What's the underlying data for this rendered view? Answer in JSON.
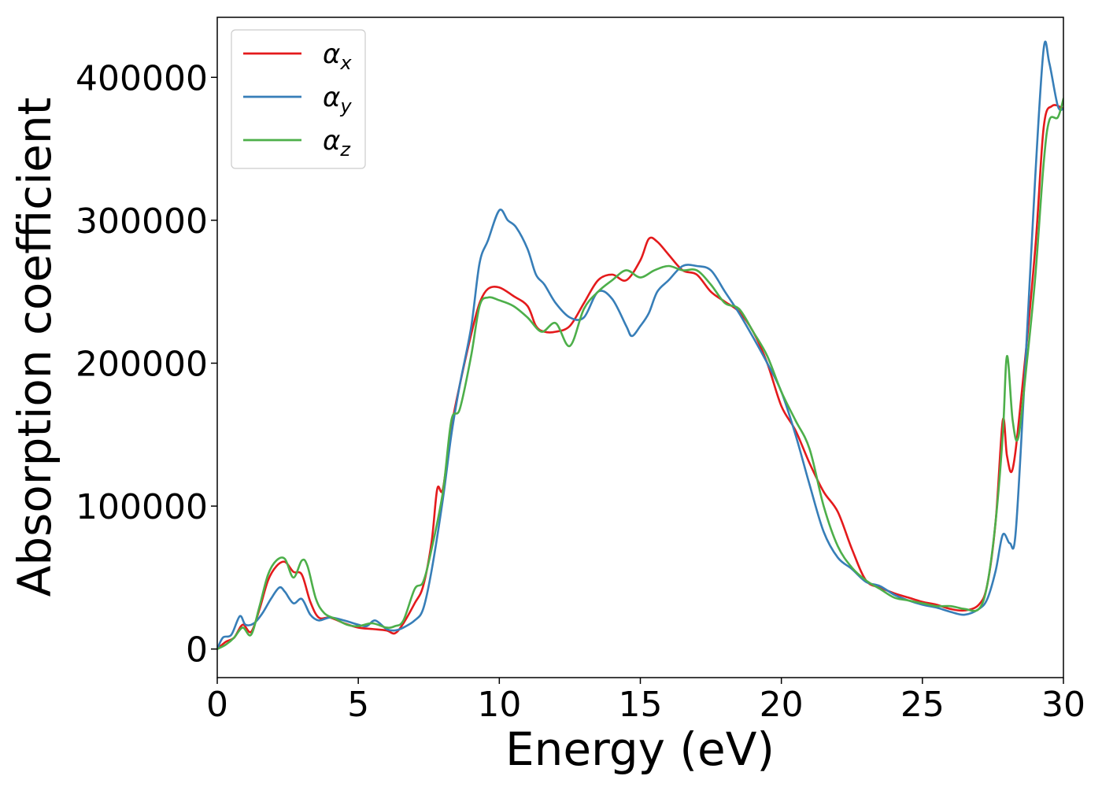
{
  "chart_data": {
    "type": "line",
    "title": "",
    "xlabel": "Energy (eV)",
    "ylabel": "Absorption coefficient",
    "xlim": [
      0,
      30
    ],
    "ylim": [
      -20000,
      442000
    ],
    "xticks": [
      0,
      5,
      10,
      15,
      20,
      25,
      30
    ],
    "xtick_labels": [
      "0",
      "5",
      "10",
      "15",
      "20",
      "25",
      "30"
    ],
    "yticks": [
      0,
      100000,
      200000,
      300000,
      400000
    ],
    "ytick_labels": [
      "0",
      "100000",
      "200000",
      "300000",
      "400000"
    ],
    "grid": false,
    "legend_position": "top-left",
    "series": [
      {
        "name": "αx",
        "symbol": "α",
        "subscript": "x",
        "color": "#e41a1c",
        "x": [
          0,
          0.3,
          0.6,
          0.9,
          1.2,
          1.5,
          1.8,
          2.1,
          2.4,
          2.7,
          3.0,
          3.3,
          3.6,
          4.0,
          4.5,
          5.0,
          5.5,
          6.0,
          6.3,
          6.6,
          7.0,
          7.3,
          7.6,
          7.8,
          8.0,
          8.3,
          8.6,
          9.0,
          9.3,
          9.6,
          10.0,
          10.5,
          11.0,
          11.3,
          11.6,
          12.0,
          12.5,
          13.0,
          13.5,
          14.0,
          14.5,
          15.0,
          15.3,
          15.6,
          16.0,
          16.5,
          17.0,
          17.5,
          18.0,
          18.5,
          19.0,
          19.5,
          20.0,
          20.5,
          21.0,
          21.5,
          22.0,
          22.5,
          23.0,
          23.5,
          24.0,
          24.5,
          25.0,
          25.5,
          26.0,
          26.5,
          27.0,
          27.3,
          27.6,
          27.85,
          28.0,
          28.2,
          28.5,
          29.0,
          29.3,
          29.6,
          30.0
        ],
        "y": [
          0,
          5000,
          8000,
          17000,
          12000,
          28000,
          48000,
          58000,
          61000,
          54000,
          52000,
          33000,
          22000,
          22000,
          18000,
          15000,
          14000,
          13000,
          11000,
          18000,
          32000,
          44000,
          75000,
          112000,
          112000,
          155000,
          185000,
          220000,
          242000,
          252000,
          253000,
          247000,
          240000,
          226000,
          222000,
          222000,
          226000,
          242000,
          258000,
          262000,
          258000,
          272000,
          287000,
          285000,
          276000,
          265000,
          262000,
          250000,
          243000,
          236000,
          222000,
          200000,
          170000,
          153000,
          130000,
          110000,
          96000,
          70000,
          48000,
          43000,
          39000,
          36000,
          33000,
          31000,
          28000,
          27000,
          31000,
          45000,
          90000,
          160000,
          135000,
          126000,
          175000,
          280000,
          365000,
          380000,
          378000
        ]
      },
      {
        "name": "αy",
        "symbol": "α",
        "subscript": "y",
        "color": "#377eb8",
        "x": [
          0,
          0.2,
          0.5,
          0.8,
          1.0,
          1.3,
          1.6,
          1.9,
          2.2,
          2.4,
          2.7,
          3.0,
          3.3,
          3.6,
          4.0,
          4.5,
          5.0,
          5.3,
          5.6,
          6.0,
          6.3,
          6.6,
          7.0,
          7.3,
          7.6,
          8.0,
          8.3,
          8.6,
          9.0,
          9.3,
          9.6,
          10.0,
          10.3,
          10.6,
          11.0,
          11.3,
          11.6,
          12.0,
          12.5,
          13.0,
          13.5,
          14.0,
          14.5,
          14.7,
          15.0,
          15.3,
          15.6,
          16.0,
          16.5,
          17.0,
          17.5,
          18.0,
          18.5,
          19.0,
          19.5,
          20.0,
          20.5,
          21.0,
          21.5,
          22.0,
          22.5,
          23.0,
          23.5,
          24.0,
          24.5,
          25.0,
          25.5,
          26.0,
          26.5,
          27.0,
          27.3,
          27.6,
          27.85,
          28.1,
          28.3,
          28.6,
          29.0,
          29.3,
          29.5,
          29.8,
          30.0
        ],
        "y": [
          0,
          8000,
          10000,
          23000,
          17000,
          18000,
          25000,
          35000,
          43000,
          40000,
          32000,
          35000,
          24000,
          20000,
          22000,
          20000,
          17000,
          16000,
          20000,
          14000,
          13000,
          15000,
          20000,
          28000,
          55000,
          105000,
          150000,
          185000,
          225000,
          270000,
          286000,
          307000,
          300000,
          295000,
          280000,
          262000,
          255000,
          242000,
          232000,
          232000,
          250000,
          245000,
          226000,
          219000,
          226000,
          235000,
          250000,
          258000,
          268000,
          268000,
          265000,
          250000,
          235000,
          218000,
          200000,
          180000,
          150000,
          115000,
          82000,
          64000,
          56000,
          47000,
          44000,
          38000,
          34000,
          31000,
          29000,
          26000,
          24000,
          28000,
          35000,
          55000,
          80000,
          74000,
          80000,
          180000,
          330000,
          420000,
          410000,
          380000,
          378000
        ]
      },
      {
        "name": "αz",
        "symbol": "α",
        "subscript": "z",
        "color": "#4daf4a",
        "x": [
          0,
          0.3,
          0.6,
          0.9,
          1.2,
          1.5,
          1.8,
          2.1,
          2.4,
          2.7,
          3.0,
          3.2,
          3.5,
          3.8,
          4.2,
          4.6,
          5.0,
          5.5,
          6.0,
          6.3,
          6.6,
          7.0,
          7.3,
          7.6,
          8.0,
          8.3,
          8.6,
          9.0,
          9.3,
          9.6,
          10.0,
          10.5,
          11.0,
          11.5,
          12.0,
          12.5,
          13.0,
          13.5,
          14.0,
          14.5,
          15.0,
          15.5,
          16.0,
          16.5,
          17.0,
          17.5,
          18.0,
          18.5,
          19.0,
          19.5,
          20.0,
          20.5,
          21.0,
          21.5,
          22.0,
          22.5,
          23.0,
          23.5,
          24.0,
          24.5,
          25.0,
          25.5,
          26.0,
          26.5,
          27.0,
          27.3,
          27.6,
          27.85,
          28.0,
          28.2,
          28.4,
          28.7,
          29.0,
          29.3,
          29.5,
          29.8,
          30.0
        ],
        "y": [
          0,
          3000,
          8000,
          15000,
          10000,
          30000,
          52000,
          62000,
          63000,
          50000,
          62000,
          58000,
          35000,
          25000,
          21000,
          17000,
          16000,
          18000,
          15000,
          16000,
          20000,
          42000,
          47000,
          70000,
          110000,
          160000,
          168000,
          205000,
          240000,
          246000,
          244000,
          240000,
          232000,
          222000,
          228000,
          212000,
          238000,
          250000,
          258000,
          265000,
          260000,
          265000,
          268000,
          265000,
          265000,
          255000,
          242000,
          238000,
          222000,
          205000,
          180000,
          160000,
          140000,
          100000,
          72000,
          57000,
          48000,
          42000,
          36000,
          34000,
          32000,
          30000,
          30000,
          28000,
          28000,
          45000,
          90000,
          150000,
          205000,
          160000,
          148000,
          200000,
          260000,
          340000,
          370000,
          372000,
          385000
        ]
      }
    ]
  }
}
